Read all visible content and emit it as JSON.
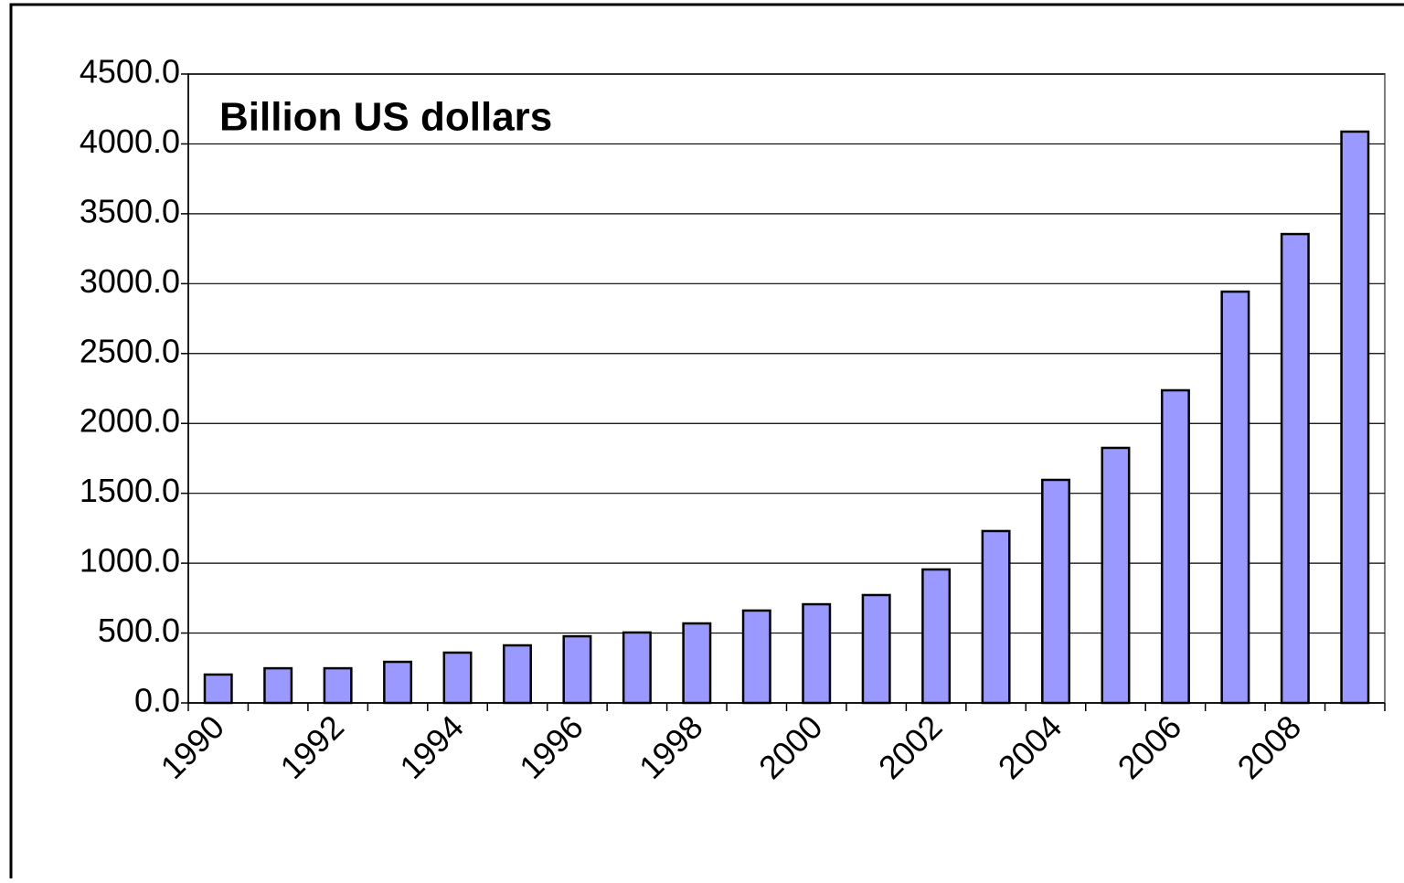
{
  "chart_data": {
    "type": "bar",
    "title": "Billion US dollars",
    "categories": [
      "1990",
      null,
      "1992",
      null,
      "1994",
      null,
      "1996",
      null,
      "1998",
      null,
      "2000",
      null,
      "2002",
      null,
      "2004",
      null,
      "2006",
      null,
      "2008",
      null
    ],
    "values": [
      203,
      248,
      248,
      294,
      360,
      412,
      477,
      504,
      569,
      661,
      706,
      772,
      955,
      1230,
      1596,
      1825,
      2237,
      2943,
      3355,
      4088
    ],
    "color": "#9999ff",
    "ylim": [
      0,
      4500
    ],
    "yticks": [
      {
        "value": 0,
        "label": "0.0"
      },
      {
        "value": 500,
        "label": "500.0"
      },
      {
        "value": 1000,
        "label": "1000.0"
      },
      {
        "value": 1500,
        "label": "1500.0"
      },
      {
        "value": 2000,
        "label": "2000.0"
      },
      {
        "value": 2500,
        "label": "2500.0"
      },
      {
        "value": 3000,
        "label": "3000.0"
      },
      {
        "value": 3500,
        "label": "3500.0"
      },
      {
        "value": 4000,
        "label": "4000.0"
      },
      {
        "value": 4500,
        "label": "4500.0"
      }
    ],
    "grid": true
  }
}
